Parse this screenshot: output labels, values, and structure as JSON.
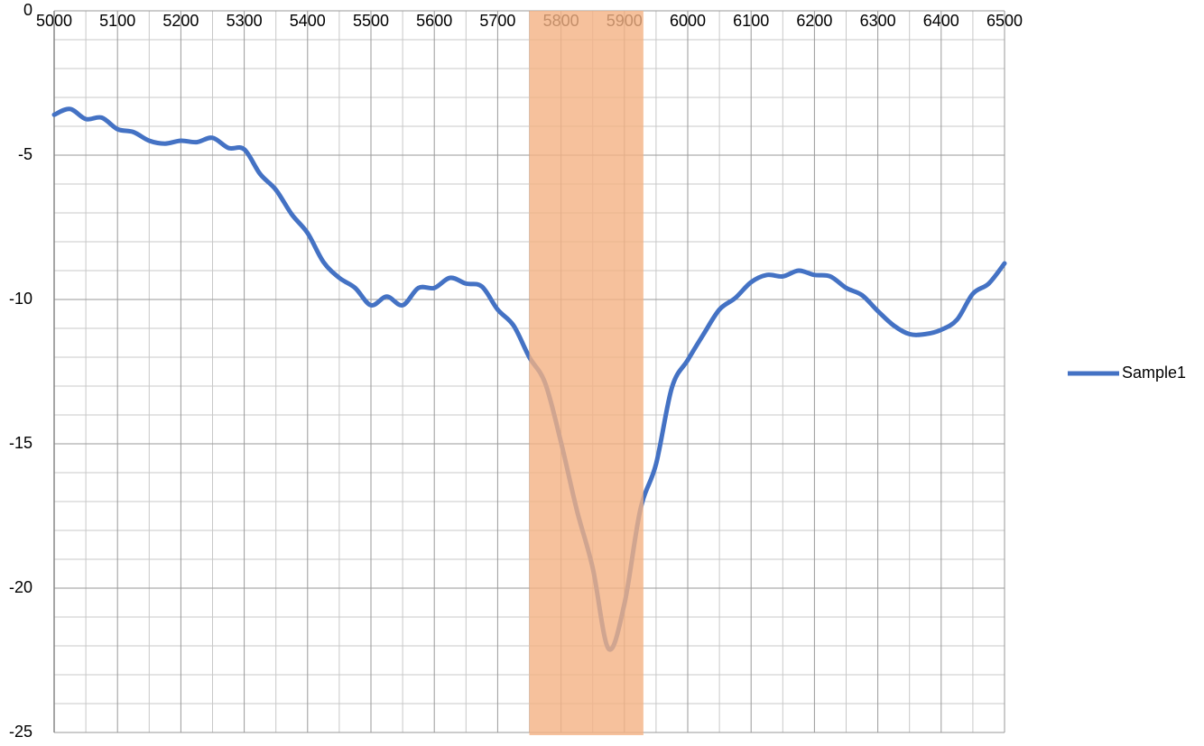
{
  "chart_data": {
    "type": "line",
    "x": [
      5000,
      5025,
      5050,
      5075,
      5100,
      5125,
      5150,
      5175,
      5200,
      5225,
      5250,
      5275,
      5300,
      5325,
      5350,
      5375,
      5400,
      5425,
      5450,
      5475,
      5500,
      5525,
      5550,
      5575,
      5600,
      5625,
      5650,
      5675,
      5700,
      5725,
      5750,
      5775,
      5800,
      5825,
      5850,
      5875,
      5900,
      5925,
      5950,
      5975,
      6000,
      6025,
      6050,
      6075,
      6100,
      6125,
      6150,
      6175,
      6200,
      6225,
      6250,
      6275,
      6300,
      6325,
      6350,
      6375,
      6400,
      6425,
      6450,
      6475,
      6500
    ],
    "series": [
      {
        "name": "Sample1",
        "color": "#4472c4",
        "values": [
          -3.6,
          -3.4,
          -3.75,
          -3.7,
          -4.1,
          -4.2,
          -4.5,
          -4.6,
          -4.5,
          -4.55,
          -4.4,
          -4.75,
          -4.8,
          -5.65,
          -6.2,
          -7.05,
          -7.7,
          -8.7,
          -9.25,
          -9.6,
          -10.2,
          -9.9,
          -10.2,
          -9.6,
          -9.6,
          -9.25,
          -9.45,
          -9.55,
          -10.35,
          -10.9,
          -12.0,
          -12.9,
          -14.95,
          -17.3,
          -19.3,
          -22.1,
          -20.55,
          -17.3,
          -15.7,
          -13.05,
          -12.1,
          -11.2,
          -10.35,
          -9.95,
          -9.4,
          -9.15,
          -9.2,
          -9.0,
          -9.15,
          -9.2,
          -9.6,
          -9.85,
          -10.4,
          -10.9,
          -11.2,
          -11.2,
          -11.05,
          -10.7,
          -9.8,
          -9.45,
          -8.75
        ]
      }
    ],
    "xlim": [
      5000,
      6500
    ],
    "xticks": [
      5000,
      5100,
      5200,
      5300,
      5400,
      5500,
      5600,
      5700,
      5800,
      5900,
      6000,
      6100,
      6200,
      6300,
      6400,
      6500
    ],
    "ylim": [
      -25,
      0
    ],
    "yticks": [
      0,
      -5,
      -10,
      -15,
      -20,
      -25
    ],
    "grid": true,
    "legend": "right",
    "highlight": {
      "xmin": 5750,
      "xmax": 5930,
      "color": "#f4b183"
    }
  }
}
